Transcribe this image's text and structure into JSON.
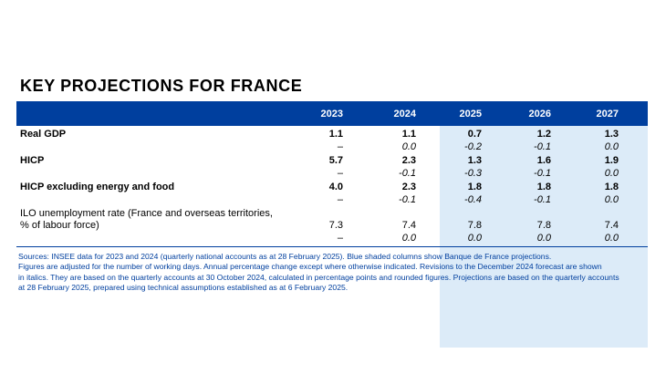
{
  "title": "KEY PROJECTIONS FOR FRANCE",
  "colors": {
    "header_bg": "#003f9e",
    "projection_shade": "#dcebf8",
    "note_text": "#003f9e"
  },
  "years": [
    "2023",
    "2024",
    "2025",
    "2026",
    "2027"
  ],
  "rows": [
    {
      "label": "Real GDP",
      "values": [
        "1.1",
        "1.1",
        "0.7",
        "1.2",
        "1.3"
      ],
      "revisions": [
        "–",
        "0.0",
        "-0.2",
        "-0.1",
        "0.0"
      ]
    },
    {
      "label": "HICP",
      "values": [
        "5.7",
        "2.3",
        "1.3",
        "1.6",
        "1.9"
      ],
      "revisions": [
        "–",
        "-0.1",
        "-0.3",
        "-0.1",
        "0.0"
      ]
    },
    {
      "label": "HICP excluding energy and food",
      "values": [
        "4.0",
        "2.3",
        "1.8",
        "1.8",
        "1.8"
      ],
      "revisions": [
        "–",
        "-0.1",
        "-0.4",
        "-0.1",
        "0.0"
      ]
    },
    {
      "label_line1": "ILO unemployment rate (France and overseas territories,",
      "label_line2": "% of labour force)",
      "values": [
        "7.3",
        "7.4",
        "7.8",
        "7.8",
        "7.4"
      ],
      "revisions": [
        "–",
        "0.0",
        "0.0",
        "0.0",
        "0.0"
      ]
    }
  ],
  "notes": [
    "Sources: INSEE data for 2023 and 2024 (quarterly national accounts as at 28 February 2025). Blue shaded columns show Banque de France projections.",
    "Figures are adjusted for the number of working days. Annual percentage change except where otherwise indicated. Revisions to the December 2024 forecast are shown",
    "in italics. They are based on the quarterly accounts at 30 October 2024, calculated in percentage points and rounded figures. Projections are based on the quarterly accounts",
    "at 28 February 2025, prepared using technical assumptions established as at 6 February 2025."
  ]
}
